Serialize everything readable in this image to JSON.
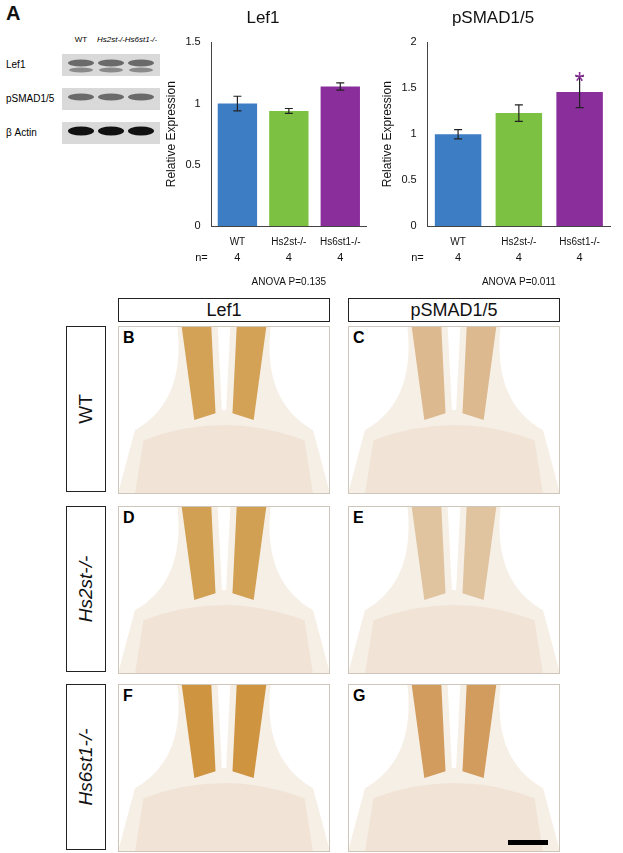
{
  "panel_label": "A",
  "blot": {
    "lanes": [
      "WT",
      "Hs2st-/-",
      "Hs6st1-/-"
    ],
    "rows": [
      "Lef1",
      "pSMAD1/5",
      "β Actin"
    ]
  },
  "chart_data": [
    {
      "type": "bar",
      "title": "Lef1",
      "y_label": "Relative Expression",
      "categories": [
        "WT",
        "Hs2st-/-",
        "Hs6st1-/-"
      ],
      "values": [
        1.0,
        0.94,
        1.14
      ],
      "errors": [
        0.06,
        0.02,
        0.03
      ],
      "colors": [
        "#3c7dc4",
        "#7dc142",
        "#8a2e9c"
      ],
      "ylim": [
        0,
        1.5
      ],
      "yticks": [
        0,
        0.5,
        1,
        1.5
      ],
      "grid": false,
      "n_label": "n=",
      "n": [
        4,
        4,
        4
      ],
      "note": "ANOVA P=0.135"
    },
    {
      "type": "bar",
      "title": "pSMAD1/5",
      "y_label": "Relative Expression",
      "categories": [
        "WT",
        "Hs2st-/-",
        "Hs6st1-/-"
      ],
      "values": [
        1.0,
        1.23,
        1.46
      ],
      "errors": [
        0.05,
        0.09,
        0.17
      ],
      "colors": [
        "#3c7dc4",
        "#7dc142",
        "#8a2e9c"
      ],
      "ylim": [
        0,
        2
      ],
      "yticks": [
        0,
        0.5,
        1,
        1.5,
        2
      ],
      "grid": false,
      "n_label": "n=",
      "n": [
        4,
        4,
        4
      ],
      "note": "ANOVA P=0.011",
      "annotations": [
        {
          "text": "*",
          "category": "Hs6st1-/-",
          "color": "#8a2e9c"
        }
      ]
    }
  ],
  "histology": {
    "columns": [
      "Lef1",
      "pSMAD1/5"
    ],
    "rows": [
      "WT",
      "Hs2st-/-",
      "Hs6st1-/-"
    ],
    "panels": [
      [
        "B",
        "C"
      ],
      [
        "D",
        "E"
      ],
      [
        "F",
        "G"
      ]
    ]
  }
}
